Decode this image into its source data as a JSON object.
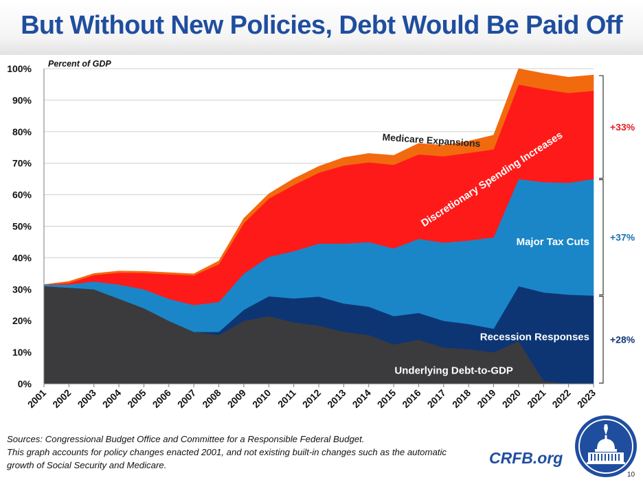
{
  "slide": {
    "title": "But Without New Policies, Debt Would Be Paid Off",
    "sources_line1": "Sources: Congressional Budget Office and Committee for a Responsible Federal Budget.",
    "sources_line2": "This graph accounts for policy changes enacted 2001, and not existing built-in changes such as the automatic",
    "sources_line3": "growth of Social Security and Medicare.",
    "site": "CRFB.org",
    "page_number": "10"
  },
  "chart_data": {
    "type": "area",
    "stacked": true,
    "unit_label": "Percent of GDP",
    "x": [
      "2001",
      "2002",
      "2003",
      "2004",
      "2005",
      "2006",
      "2007",
      "2008",
      "2009",
      "2010",
      "2011",
      "2012",
      "2013",
      "2014",
      "2015",
      "2016",
      "2017",
      "2018",
      "2019",
      "2020",
      "2021",
      "2022",
      "2023"
    ],
    "yticks": [
      "0%",
      "10%",
      "20%",
      "30%",
      "40%",
      "50%",
      "60%",
      "70%",
      "80%",
      "90%",
      "100%"
    ],
    "ylim": [
      0,
      100
    ],
    "grid": true,
    "series": [
      {
        "name": "Underlying Debt-to-GDP",
        "color": "#3b3b3d",
        "values": [
          31,
          30.5,
          30,
          27,
          24,
          20,
          16.5,
          15.5,
          20,
          21.5,
          19.5,
          18.5,
          16.5,
          15.5,
          12.5,
          14,
          11.5,
          11,
          10,
          13.5,
          1,
          0,
          0
        ]
      },
      {
        "name": "Recession Responses",
        "color": "#0d3574",
        "values": [
          0,
          0,
          0,
          0,
          0,
          0,
          0,
          1,
          3.5,
          6.3,
          7.6,
          9.2,
          9,
          9,
          9,
          8.5,
          8.5,
          8,
          7.5,
          17.5,
          28,
          28.3,
          28
        ]
      },
      {
        "name": "Major Tax Cuts",
        "color": "#1a86c8",
        "values": [
          0.5,
          1,
          2.5,
          4.5,
          6,
          7,
          8.5,
          9.5,
          11.5,
          12.5,
          15,
          16.8,
          19,
          20.5,
          21.5,
          23.5,
          24.8,
          26.5,
          29,
          34,
          35,
          35.5,
          37
        ]
      },
      {
        "name": "Discretionary Spending Increases",
        "color": "#ff1a1a",
        "values": [
          0,
          0.5,
          2,
          3.8,
          5.2,
          7.8,
          9.4,
          12,
          16,
          18.5,
          21,
          22.5,
          24.8,
          25.3,
          26.5,
          26.8,
          27.4,
          27.8,
          27.9,
          30,
          29.5,
          28.5,
          28
        ]
      },
      {
        "name": "Medicare Expansions",
        "color": "#f26a0e",
        "values": [
          0,
          0.5,
          0.5,
          0.5,
          0.5,
          0.5,
          0.5,
          1,
          1.5,
          1.5,
          2,
          2,
          2.5,
          2.8,
          3,
          3.5,
          3.5,
          3.7,
          4.5,
          5,
          5,
          5,
          5
        ]
      }
    ],
    "brackets": [
      {
        "label": "+33%",
        "color": "#e31b23"
      },
      {
        "label": "+37%",
        "color": "#1a6fb0"
      },
      {
        "label": "+28%",
        "color": "#0d3574"
      }
    ]
  }
}
